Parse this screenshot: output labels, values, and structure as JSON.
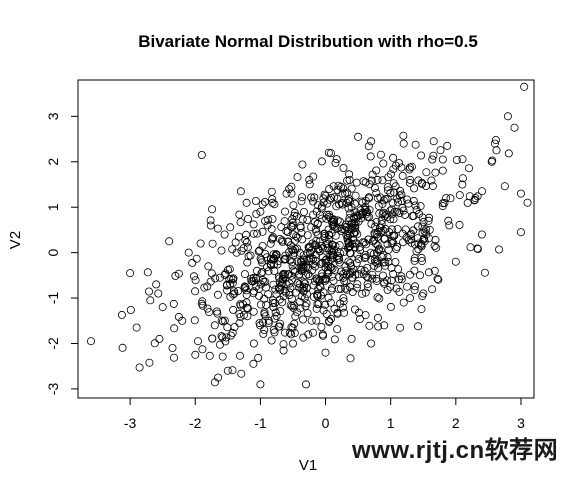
{
  "chart_data": {
    "type": "scatter",
    "title": "Bivariate Normal Distribution with rho=0.5",
    "xlabel": "V1",
    "ylabel": "V2",
    "xlim": [
      -3.8,
      3.2
    ],
    "ylim": [
      -3.2,
      3.8
    ],
    "xticks": [
      -3,
      -2,
      -1,
      0,
      1,
      2,
      3
    ],
    "yticks": [
      -3,
      -2,
      -1,
      0,
      1,
      2,
      3
    ],
    "grid": false,
    "legend": "none",
    "marker": "open-circle",
    "point_color": "#000000",
    "n_points": 1000,
    "points": [
      [
        -3.6,
        -1.95
      ],
      [
        -3.0,
        -0.45
      ],
      [
        -2.6,
        -0.7
      ],
      [
        -2.9,
        -1.65
      ],
      [
        -2.55,
        -1.9
      ],
      [
        -2.35,
        -2.1
      ],
      [
        -2.0,
        -2.25
      ],
      [
        -2.4,
        0.25
      ],
      [
        -2.1,
        0.0
      ],
      [
        -1.9,
        2.15
      ],
      [
        -1.3,
        1.35
      ],
      [
        -1.65,
        -2.75
      ],
      [
        -1.5,
        -2.6
      ],
      [
        -1.0,
        -2.9
      ],
      [
        -0.3,
        -2.9
      ],
      [
        -1.1,
        -2.0
      ],
      [
        -0.5,
        -2.0
      ],
      [
        0.0,
        -2.2
      ],
      [
        0.4,
        -1.9
      ],
      [
        0.7,
        -2.0
      ],
      [
        0.9,
        -1.6
      ],
      [
        1.2,
        -1.1
      ],
      [
        1.45,
        -0.5
      ],
      [
        1.6,
        0.5
      ],
      [
        1.85,
        1.2
      ],
      [
        2.1,
        1.5
      ],
      [
        2.3,
        1.2
      ],
      [
        2.55,
        2.0
      ],
      [
        2.6,
        2.4
      ],
      [
        2.8,
        3.0
      ],
      [
        2.9,
        2.75
      ],
      [
        3.05,
        3.65
      ],
      [
        3.0,
        1.3
      ],
      [
        3.1,
        1.1
      ],
      [
        3.0,
        0.45
      ],
      [
        2.4,
        0.4
      ],
      [
        0.5,
        2.55
      ],
      [
        0.05,
        2.2
      ],
      [
        0.7,
        2.45
      ],
      [
        1.2,
        2.4
      ],
      [
        -0.25,
        1.6
      ],
      [
        -0.6,
        1.3
      ],
      [
        1.8,
        2.05
      ],
      [
        1.9,
        0.6
      ],
      [
        2.0,
        -0.2
      ],
      [
        1.5,
        -0.9
      ],
      [
        -2.5,
        -1.2
      ],
      [
        -2.2,
        -1.5
      ],
      [
        -1.7,
        -1.6
      ],
      [
        -1.4,
        -0.9
      ],
      [
        -1.2,
        -1.4
      ],
      [
        -0.8,
        -1.2
      ],
      [
        -0.6,
        -0.7
      ],
      [
        -0.3,
        -0.5
      ],
      [
        0.2,
        -0.8
      ],
      [
        0.6,
        -0.4
      ],
      [
        0.9,
        0.3
      ],
      [
        1.1,
        0.9
      ],
      [
        -1.0,
        0.9
      ],
      [
        -1.55,
        0.4
      ],
      [
        -1.8,
        -0.3
      ],
      [
        -0.9,
        -0.1
      ],
      [
        -0.2,
        0.2
      ],
      [
        0.3,
        0.5
      ],
      [
        0.8,
        1.2
      ],
      [
        1.3,
        1.6
      ],
      [
        -0.5,
        0.6
      ],
      [
        0.1,
        0.0
      ],
      [
        0.4,
        1.0
      ],
      [
        -0.7,
        0.3
      ]
    ],
    "seed": 1729
  },
  "watermark": "www.rjtj.cn软荐网"
}
